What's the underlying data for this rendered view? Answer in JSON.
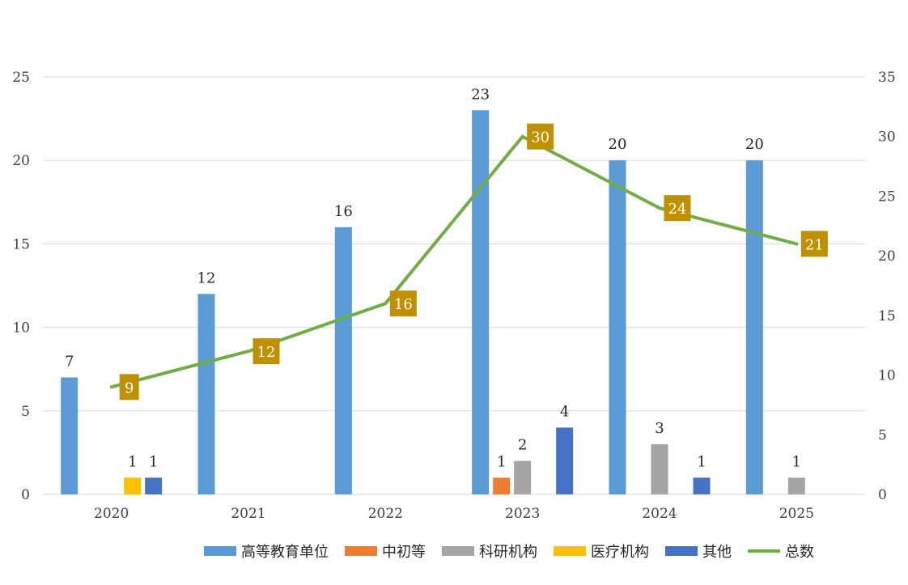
{
  "chart_data": {
    "type": "bar",
    "title": "",
    "xlabel": "",
    "ylabel": "",
    "categories": [
      "2020",
      "2021",
      "2022",
      "2023",
      "2024",
      "2025"
    ],
    "ylim": [
      0,
      25
    ],
    "y_ticks": [
      "0",
      "5",
      "10",
      "15",
      "20",
      "25"
    ],
    "y2lim": [
      0,
      35
    ],
    "y2_ticks": [
      "0",
      "5",
      "10",
      "15",
      "20",
      "25",
      "30",
      "35"
    ],
    "grid": true,
    "legend_position": "bottom",
    "series": [
      {
        "name": "高等教育单位",
        "color": "#5B9BD5",
        "values": [
          7,
          12,
          16,
          23,
          20,
          20
        ]
      },
      {
        "name": "中初等",
        "color": "#ED7D31",
        "values": [
          0,
          0,
          0,
          1,
          0,
          0
        ]
      },
      {
        "name": "科研机构",
        "color": "#A5A5A5",
        "values": [
          0,
          0,
          0,
          2,
          3,
          1
        ]
      },
      {
        "name": "医疗机构",
        "color": "#FFC000",
        "values": [
          1,
          0,
          0,
          0,
          0,
          0
        ]
      },
      {
        "name": "其他",
        "color": "#4472C4",
        "values": [
          1,
          0,
          0,
          4,
          1,
          0
        ]
      }
    ],
    "line_series": {
      "name": "总数",
      "color": "#70AD47",
      "label_bg": "#BF9000",
      "axis": "secondary",
      "values": [
        9,
        12,
        16,
        30,
        24,
        21
      ]
    }
  }
}
